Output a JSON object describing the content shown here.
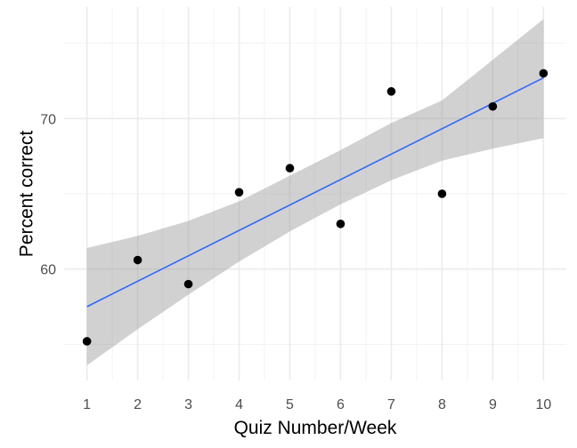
{
  "chart_data": {
    "type": "scatter",
    "title": "",
    "xlabel": "Quiz Number/Week",
    "ylabel": "Percent correct",
    "xlim": [
      0.55,
      10.45
    ],
    "ylim": [
      52.6,
      77.4
    ],
    "x_ticks": [
      1,
      2,
      3,
      4,
      5,
      6,
      7,
      8,
      9,
      10
    ],
    "y_ticks": [
      60,
      70
    ],
    "grid": true,
    "legend": "none",
    "series": [
      {
        "x": [
          1,
          2,
          3,
          4,
          5,
          6,
          7,
          8,
          9,
          10
        ],
        "y": [
          55.2,
          60.6,
          59.0,
          65.1,
          66.7,
          63.0,
          71.8,
          65.0,
          70.8,
          73.0
        ]
      }
    ],
    "trend_line": {
      "method": "linear",
      "x": [
        1,
        10
      ],
      "y": [
        57.5,
        72.7
      ]
    },
    "confidence_band": {
      "x": [
        1,
        2,
        3,
        4,
        5,
        6,
        7,
        8,
        9,
        10
      ],
      "lower": [
        53.6,
        56.0,
        58.3,
        60.5,
        62.5,
        64.3,
        65.9,
        67.2,
        68.0,
        68.7
      ],
      "upper": [
        61.4,
        62.2,
        63.2,
        64.5,
        66.2,
        67.9,
        69.7,
        71.2,
        73.9,
        76.6
      ]
    },
    "colors": {
      "point": "#000000",
      "line": "#3366ff",
      "band": "#999999",
      "grid_major": "#ebebeb",
      "grid_minor": "#f2f2f2"
    }
  }
}
